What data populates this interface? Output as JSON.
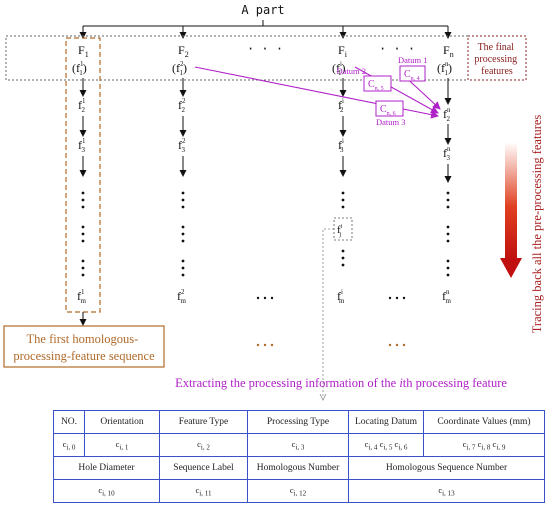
{
  "title": "A part",
  "final_label": [
    "The final",
    "processing",
    "features"
  ],
  "columns": [
    {
      "F": "F",
      "Fsub": "1",
      "f": "f",
      "fsup": "1",
      "fsub": "1",
      "rows": [
        [
          "f",
          "1",
          "2"
        ],
        [
          "f",
          "1",
          "3"
        ]
      ],
      "last": [
        "f",
        "1",
        "m"
      ]
    },
    {
      "F": "F",
      "Fsub": "2",
      "f": "f",
      "fsup": "2",
      "fsub": "1",
      "rows": [
        [
          "f",
          "2",
          "2"
        ],
        [
          "f",
          "2",
          "3"
        ]
      ],
      "last": [
        "f",
        "2",
        "m"
      ]
    },
    {
      "F": "F",
      "Fsub": "i",
      "f": "f",
      "fsup": "i",
      "fsub": "1",
      "rows": [
        [
          "f",
          "i",
          "2"
        ],
        [
          "f",
          "i",
          "3"
        ]
      ],
      "last": [
        "f",
        "i",
        "m"
      ]
    },
    {
      "F": "F",
      "Fsub": "n",
      "f": "f",
      "fsup": "n",
      "fsub": "1",
      "rows": [
        [
          "f",
          "n",
          "2"
        ],
        [
          "f",
          "n",
          "3"
        ]
      ],
      "last": [
        "f",
        "n",
        "m"
      ]
    }
  ],
  "fj": {
    "base": "f",
    "sup": "i",
    "sub": "j"
  },
  "datums": {
    "d1": "Datum 1",
    "d2": "Datum 2",
    "d3": "Datum 3",
    "c4": {
      "base": "C",
      "sub": "n, 4"
    },
    "c5": {
      "base": "C",
      "sub": "n, 5"
    },
    "c6": {
      "base": "C",
      "sub": "n, 6"
    }
  },
  "tracing_label": "Tracing back all the pre-processing features",
  "homologous_box": [
    "The first homologous-",
    "processing-feature sequence"
  ],
  "extract_text": {
    "pre": "Extracting the processing information of the ",
    "italic": "i",
    "post": "th processing feature"
  },
  "colors": {
    "purple": "#b020c8",
    "brown": "#b06a2a",
    "red_text": "#a82020",
    "table_border": "#3a52c8",
    "arrow_dark": "#c01010"
  },
  "table": {
    "row1": [
      "NO.",
      "Orientation",
      "Feature Type",
      "Processing Type",
      "Locating Datum",
      "Coordinate Values (mm)"
    ],
    "row2": [
      [
        "c",
        "i, 0"
      ],
      [
        "c",
        "i, 1"
      ],
      [
        "c",
        "i, 2"
      ],
      [
        "c",
        "i, 3"
      ],
      [
        "c",
        "i, 4"
      ],
      [
        "c",
        "i, 5"
      ],
      [
        "c",
        "i, 6"
      ],
      [
        "c",
        "i, 7"
      ],
      [
        "c",
        "i, 8"
      ],
      [
        "c",
        "i, 9"
      ]
    ],
    "row3": [
      "Hole Diameter",
      "Sequence Label",
      "Homologous Number",
      "Homologous Sequence Number"
    ],
    "row4": [
      [
        "c",
        "i, 10"
      ],
      [
        "c",
        "i, 11"
      ],
      [
        "c",
        "i, 12"
      ],
      [
        "c",
        "i, 13"
      ]
    ]
  }
}
